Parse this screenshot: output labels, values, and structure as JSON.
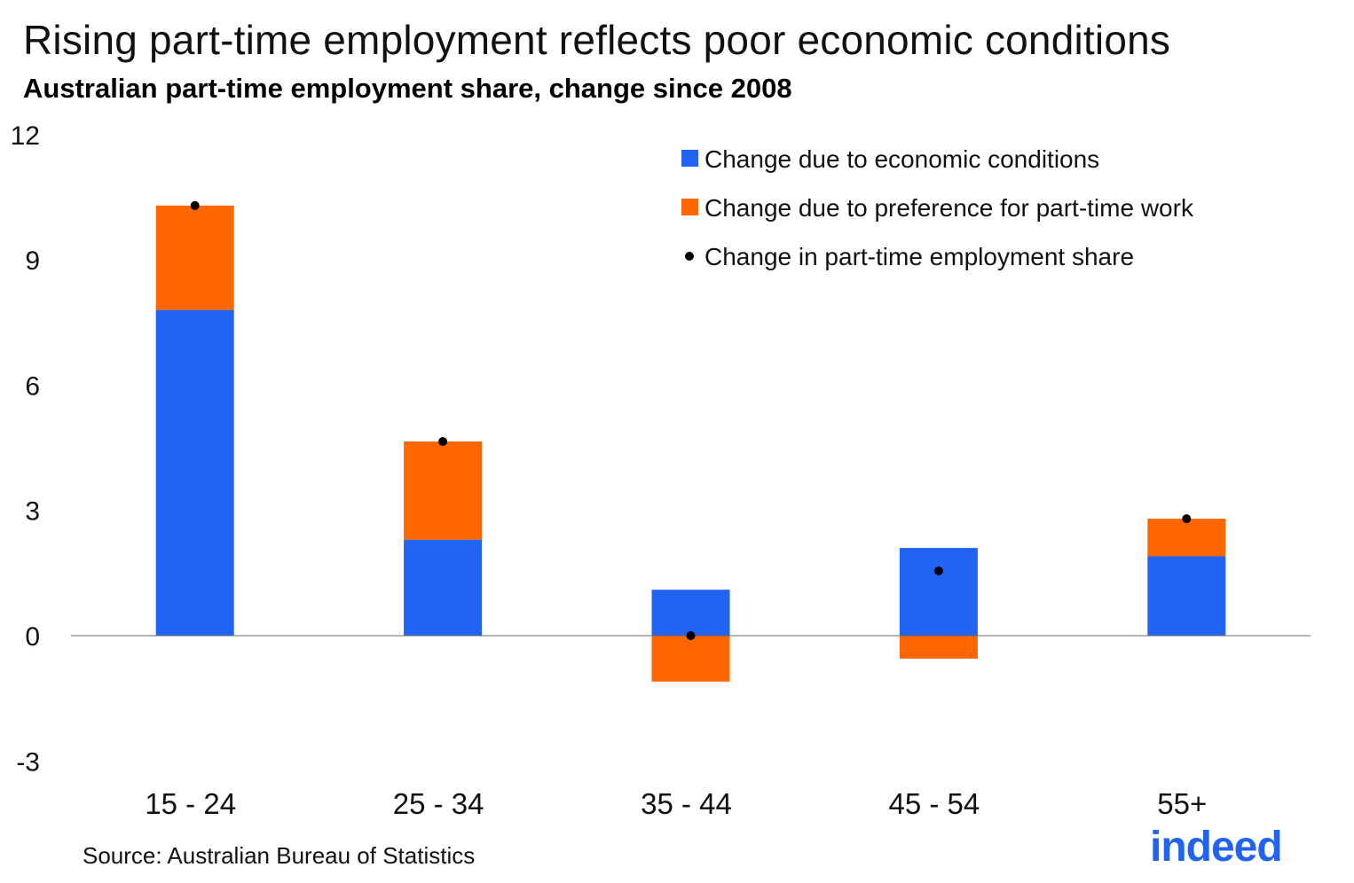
{
  "chart_data": {
    "type": "bar",
    "stacked": true,
    "title": "Rising part-time employment reflects poor economic conditions",
    "subtitle": "Australian part-time employment share, change since 2008",
    "xlabel": "",
    "ylabel": "",
    "categories": [
      "15 - 24",
      "25 - 34",
      "35 - 44",
      "45 - 54",
      "55+"
    ],
    "ylim": [
      -3,
      12
    ],
    "yticks": [
      -3,
      0,
      3,
      6,
      9,
      12
    ],
    "grid": false,
    "legend_position": "top-right",
    "series": [
      {
        "name": "Change due to economic conditions",
        "kind": "bar",
        "color": "#2164f3",
        "values": [
          7.8,
          2.3,
          1.1,
          2.1,
          1.9
        ]
      },
      {
        "name": "Change due to preference for part-time work",
        "kind": "bar",
        "color": "#ff6600",
        "values": [
          2.5,
          2.35,
          -1.1,
          -0.55,
          0.9
        ]
      },
      {
        "name": "Change in part-time employment share",
        "kind": "dot",
        "color": "#000000",
        "values": [
          10.3,
          4.65,
          0.0,
          1.55,
          2.8
        ]
      }
    ]
  },
  "source": "Source: Australian Bureau of Statistics",
  "logo": "indeed"
}
